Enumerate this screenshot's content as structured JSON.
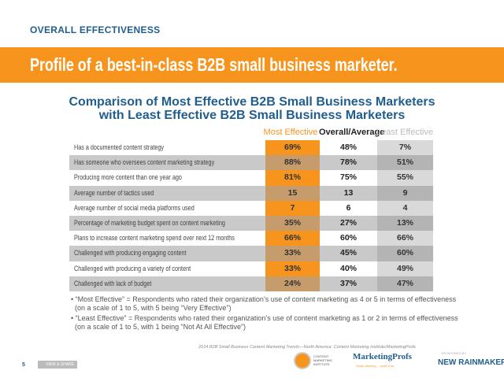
{
  "section_label": "OVERALL EFFECTIVENESS",
  "banner_title": "Profile of a best-in-class B2B small business marketer.",
  "subtitle_line1": "Comparison of Most Effective B2B Small Business Marketers",
  "subtitle_line2": "with Least Effective B2B Small Business Marketers",
  "columns": {
    "most": "Most Effective",
    "overall": "Overall/Average",
    "least": "Least Effective"
  },
  "colors": {
    "most": "#f7941d",
    "overall": "#222222",
    "least": "#c0c0c0",
    "title": "#1f5e8e"
  },
  "rows": [
    {
      "label": "Has a documented content strategy",
      "most": "69%",
      "overall": "48%",
      "least": "7%"
    },
    {
      "label": "Has someone who oversees content marketing strategy",
      "most": "88%",
      "overall": "78%",
      "least": "51%"
    },
    {
      "label": "Producing more content than one year ago",
      "most": "81%",
      "overall": "75%",
      "least": "55%"
    },
    {
      "label": "Average number of tactics used",
      "most": "15",
      "overall": "13",
      "least": "9"
    },
    {
      "label": "Average number of social media platforms used",
      "most": "7",
      "overall": "6",
      "least": "4"
    },
    {
      "label": "Percentage of marketing budget spent on content marketing",
      "most": "35%",
      "overall": "27%",
      "least": "13%"
    },
    {
      "label": "Plans to increase content marketing spend over next 12 months",
      "most": "66%",
      "overall": "60%",
      "least": "66%"
    },
    {
      "label": "Challenged with producing engaging content",
      "most": "33%",
      "overall": "45%",
      "least": "60%"
    },
    {
      "label": "Challenged with producing a variety of content",
      "most": "33%",
      "overall": "40%",
      "least": "49%"
    },
    {
      "label": "Challenged with lack of budget",
      "most": "24%",
      "overall": "37%",
      "least": "47%"
    }
  ],
  "notes": [
    "• “Most Effective” = Respondents who rated their organization’s use of content marketing as 4 or 5 in terms of effectiveness (on a scale of 1 to 5, with 5 being “Very Effective”)",
    "• “Least Effective” = Respondents who rated their organization’s use of content marketing as 1 or 2 in terms of effectiveness (on a scale of 1 to 5, with 1 being “Not At All Effective”)"
  ],
  "source": "2014 B2B Small Business Content Marketing Trends—North America: Content Marketing Institute/MarketingProfs",
  "footer": {
    "page": "5",
    "view_share": "VIEW & SHARE",
    "logo_cmi": "CONTENT MARKETING INSTITUTE",
    "logo_mp": "MarketingProfs",
    "logo_mp_tag": "Smart thinking ... pass it on.",
    "sponsored": "SPONSORED BY",
    "logo_nr": "NEW RAINMAKER"
  }
}
